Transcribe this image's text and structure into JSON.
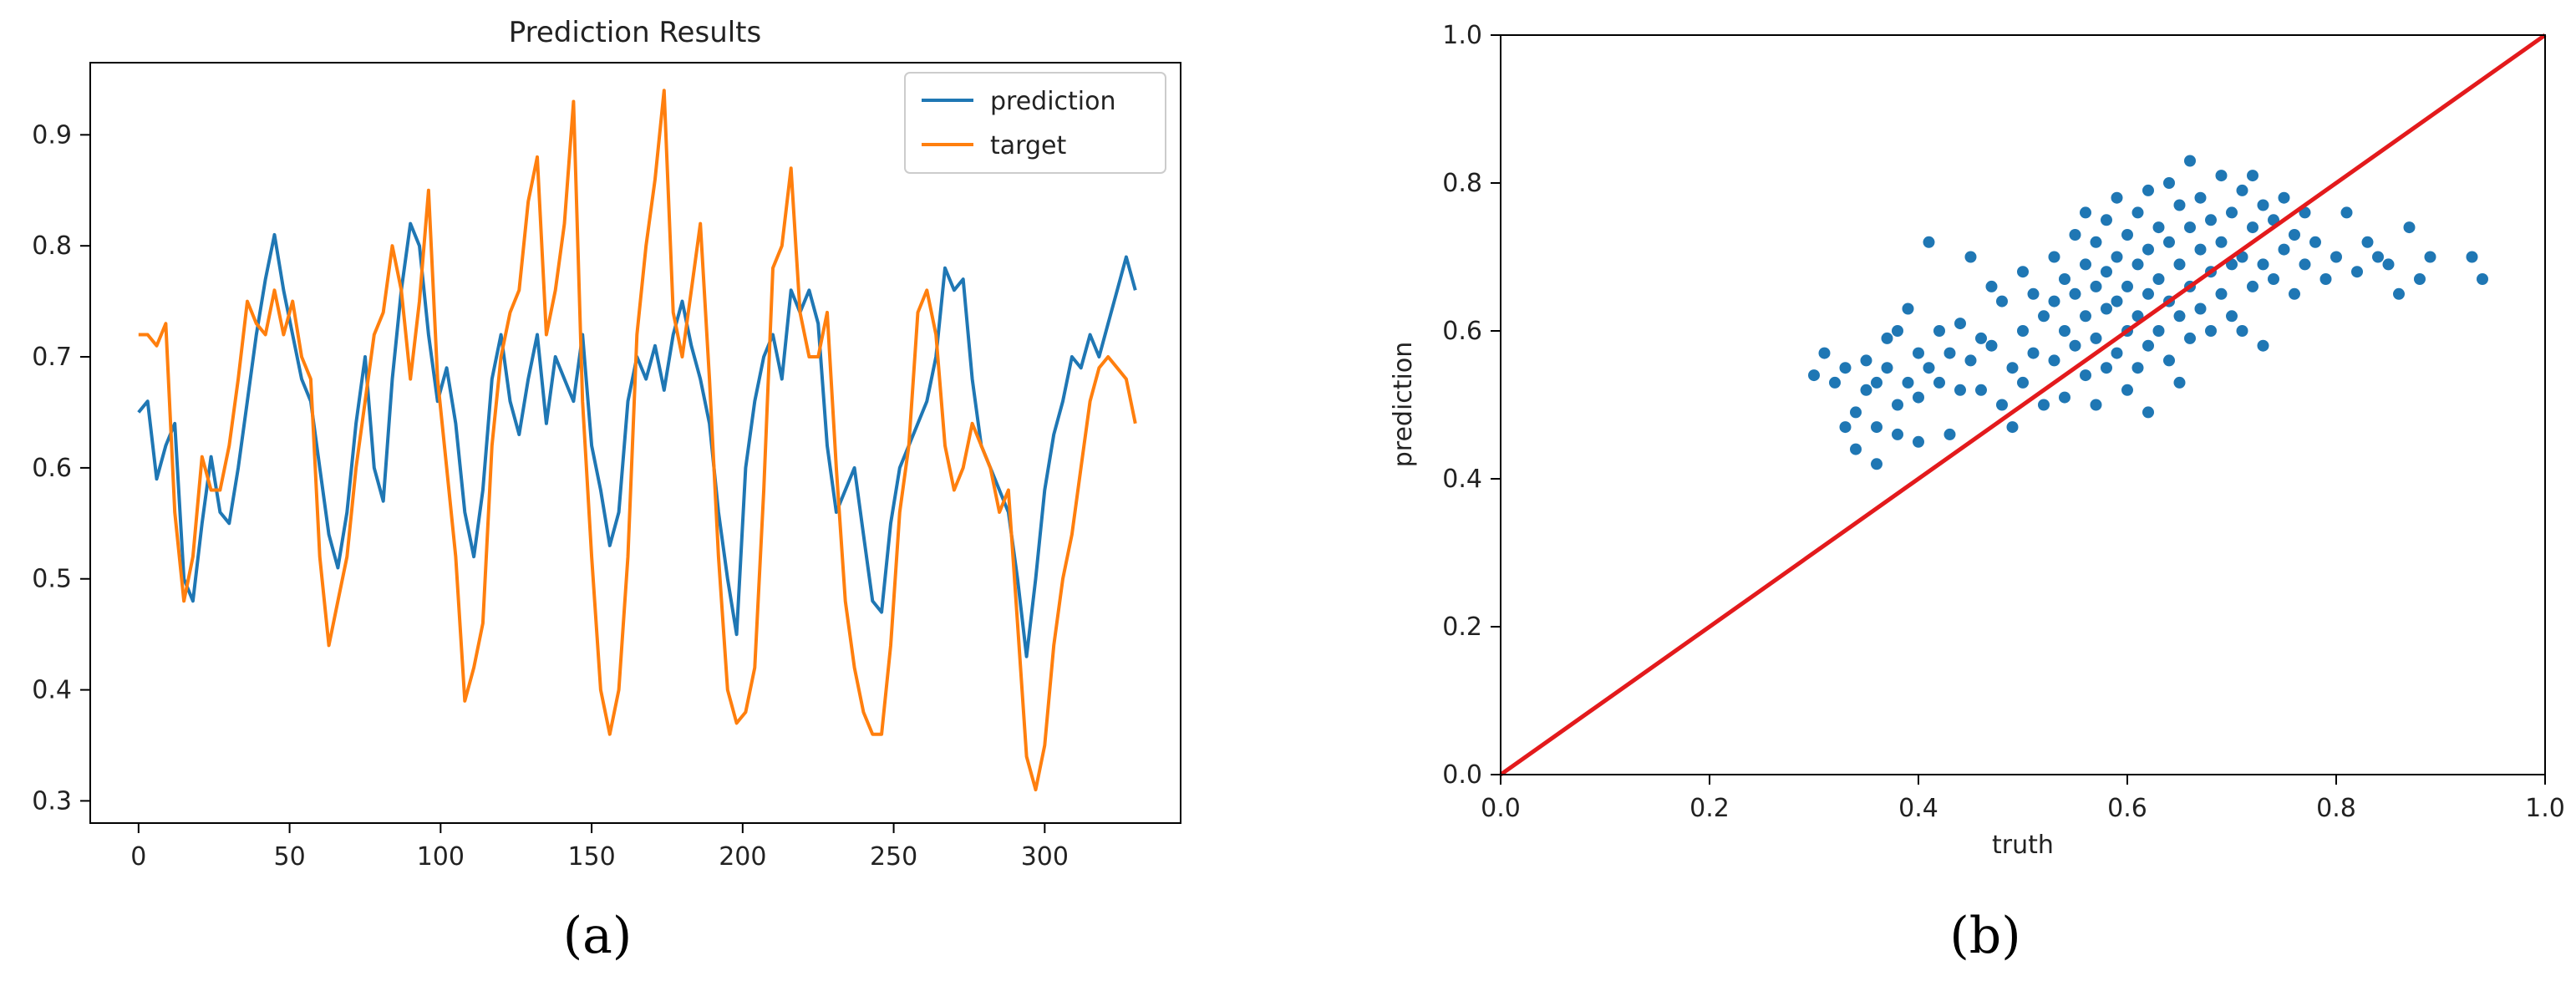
{
  "colors": {
    "prediction": "#1f77b4",
    "target": "#ff7f0e",
    "identity_line": "#e31a1c",
    "axis": "#000000"
  },
  "chart_data": [
    {
      "type": "line",
      "title": "Prediction Results",
      "caption": "(a)",
      "xlabel": "",
      "ylabel": "",
      "xlim": [
        -16,
        345
      ],
      "ylim": [
        0.28,
        0.965
      ],
      "xticks": [
        0,
        50,
        100,
        150,
        200,
        250,
        300
      ],
      "yticks": [
        0.3,
        0.4,
        0.5,
        0.6,
        0.7,
        0.8,
        0.9
      ],
      "legend_position": "top-right",
      "grid": false,
      "series": [
        {
          "name": "prediction",
          "x": [
            0,
            3,
            6,
            9,
            12,
            15,
            18,
            21,
            24,
            27,
            30,
            33,
            36,
            39,
            42,
            45,
            48,
            51,
            54,
            57,
            60,
            63,
            66,
            69,
            72,
            75,
            78,
            81,
            84,
            87,
            90,
            93,
            96,
            99,
            102,
            105,
            108,
            111,
            114,
            117,
            120,
            123,
            126,
            129,
            132,
            135,
            138,
            141,
            144,
            147,
            150,
            153,
            156,
            159,
            162,
            165,
            168,
            171,
            174,
            177,
            180,
            183,
            186,
            189,
            192,
            195,
            198,
            201,
            204,
            207,
            210,
            213,
            216,
            219,
            222,
            225,
            228,
            231,
            234,
            237,
            240,
            243,
            246,
            249,
            252,
            255,
            258,
            261,
            264,
            267,
            270,
            273,
            276,
            279,
            282,
            285,
            288,
            291,
            294,
            297,
            300,
            303,
            306,
            309,
            312,
            315,
            318,
            321,
            324,
            327,
            330
          ],
          "values": [
            0.65,
            0.66,
            0.59,
            0.62,
            0.64,
            0.5,
            0.48,
            0.55,
            0.61,
            0.56,
            0.55,
            0.6,
            0.66,
            0.72,
            0.77,
            0.81,
            0.76,
            0.72,
            0.68,
            0.66,
            0.6,
            0.54,
            0.51,
            0.56,
            0.64,
            0.7,
            0.6,
            0.57,
            0.68,
            0.76,
            0.82,
            0.8,
            0.72,
            0.66,
            0.69,
            0.64,
            0.56,
            0.52,
            0.58,
            0.68,
            0.72,
            0.66,
            0.63,
            0.68,
            0.72,
            0.64,
            0.7,
            0.68,
            0.66,
            0.72,
            0.62,
            0.58,
            0.53,
            0.56,
            0.66,
            0.7,
            0.68,
            0.71,
            0.67,
            0.72,
            0.75,
            0.71,
            0.68,
            0.64,
            0.56,
            0.5,
            0.45,
            0.6,
            0.66,
            0.7,
            0.72,
            0.68,
            0.76,
            0.74,
            0.76,
            0.73,
            0.62,
            0.56,
            0.58,
            0.6,
            0.54,
            0.48,
            0.47,
            0.55,
            0.6,
            0.62,
            0.64,
            0.66,
            0.7,
            0.78,
            0.76,
            0.77,
            0.68,
            0.62,
            0.6,
            0.58,
            0.56,
            0.5,
            0.43,
            0.5,
            0.58,
            0.63,
            0.66,
            0.7,
            0.69,
            0.72,
            0.7,
            0.73,
            0.76,
            0.79,
            0.76
          ]
        },
        {
          "name": "target",
          "x": [
            0,
            3,
            6,
            9,
            12,
            15,
            18,
            21,
            24,
            27,
            30,
            33,
            36,
            39,
            42,
            45,
            48,
            51,
            54,
            57,
            60,
            63,
            66,
            69,
            72,
            75,
            78,
            81,
            84,
            87,
            90,
            93,
            96,
            99,
            102,
            105,
            108,
            111,
            114,
            117,
            120,
            123,
            126,
            129,
            132,
            135,
            138,
            141,
            144,
            147,
            150,
            153,
            156,
            159,
            162,
            165,
            168,
            171,
            174,
            177,
            180,
            183,
            186,
            189,
            192,
            195,
            198,
            201,
            204,
            207,
            210,
            213,
            216,
            219,
            222,
            225,
            228,
            231,
            234,
            237,
            240,
            243,
            246,
            249,
            252,
            255,
            258,
            261,
            264,
            267,
            270,
            273,
            276,
            279,
            282,
            285,
            288,
            291,
            294,
            297,
            300,
            303,
            306,
            309,
            312,
            315,
            318,
            321,
            324,
            327,
            330
          ],
          "values": [
            0.72,
            0.72,
            0.71,
            0.73,
            0.56,
            0.48,
            0.52,
            0.61,
            0.58,
            0.58,
            0.62,
            0.68,
            0.75,
            0.73,
            0.72,
            0.76,
            0.72,
            0.75,
            0.7,
            0.68,
            0.52,
            0.44,
            0.48,
            0.52,
            0.6,
            0.66,
            0.72,
            0.74,
            0.8,
            0.76,
            0.68,
            0.75,
            0.85,
            0.68,
            0.6,
            0.52,
            0.39,
            0.42,
            0.46,
            0.62,
            0.7,
            0.74,
            0.76,
            0.84,
            0.88,
            0.72,
            0.76,
            0.82,
            0.93,
            0.66,
            0.52,
            0.4,
            0.36,
            0.4,
            0.52,
            0.72,
            0.8,
            0.86,
            0.94,
            0.74,
            0.7,
            0.76,
            0.82,
            0.68,
            0.52,
            0.4,
            0.37,
            0.38,
            0.42,
            0.58,
            0.78,
            0.8,
            0.87,
            0.74,
            0.7,
            0.7,
            0.74,
            0.6,
            0.48,
            0.42,
            0.38,
            0.36,
            0.36,
            0.44,
            0.56,
            0.62,
            0.74,
            0.76,
            0.72,
            0.62,
            0.58,
            0.6,
            0.64,
            0.62,
            0.6,
            0.56,
            0.58,
            0.46,
            0.34,
            0.31,
            0.35,
            0.44,
            0.5,
            0.54,
            0.6,
            0.66,
            0.69,
            0.7,
            0.69,
            0.68,
            0.64
          ]
        }
      ]
    },
    {
      "type": "scatter",
      "caption": "(b)",
      "xlabel": "truth",
      "ylabel": "prediction",
      "xlim": [
        0.0,
        1.0
      ],
      "ylim": [
        0.0,
        1.0
      ],
      "xticks": [
        0.0,
        0.2,
        0.4,
        0.6,
        0.8,
        1.0
      ],
      "yticks": [
        0.0,
        0.2,
        0.4,
        0.6,
        0.8,
        1.0
      ],
      "grid": false,
      "reference_line": {
        "from": [
          0.0,
          0.0
        ],
        "to": [
          1.0,
          1.0
        ]
      },
      "points": [
        [
          0.3,
          0.54
        ],
        [
          0.31,
          0.57
        ],
        [
          0.32,
          0.53
        ],
        [
          0.33,
          0.55
        ],
        [
          0.33,
          0.47
        ],
        [
          0.34,
          0.44
        ],
        [
          0.34,
          0.49
        ],
        [
          0.35,
          0.52
        ],
        [
          0.35,
          0.56
        ],
        [
          0.36,
          0.53
        ],
        [
          0.36,
          0.42
        ],
        [
          0.36,
          0.47
        ],
        [
          0.37,
          0.59
        ],
        [
          0.37,
          0.55
        ],
        [
          0.38,
          0.5
        ],
        [
          0.38,
          0.46
        ],
        [
          0.38,
          0.6
        ],
        [
          0.39,
          0.53
        ],
        [
          0.39,
          0.63
        ],
        [
          0.4,
          0.57
        ],
        [
          0.4,
          0.51
        ],
        [
          0.4,
          0.45
        ],
        [
          0.41,
          0.72
        ],
        [
          0.41,
          0.55
        ],
        [
          0.42,
          0.6
        ],
        [
          0.42,
          0.53
        ],
        [
          0.43,
          0.57
        ],
        [
          0.43,
          0.46
        ],
        [
          0.44,
          0.61
        ],
        [
          0.44,
          0.52
        ],
        [
          0.45,
          0.7
        ],
        [
          0.45,
          0.56
        ],
        [
          0.46,
          0.59
        ],
        [
          0.46,
          0.52
        ],
        [
          0.47,
          0.66
        ],
        [
          0.47,
          0.58
        ],
        [
          0.48,
          0.64
        ],
        [
          0.48,
          0.5
        ],
        [
          0.49,
          0.55
        ],
        [
          0.49,
          0.47
        ],
        [
          0.5,
          0.68
        ],
        [
          0.5,
          0.6
        ],
        [
          0.5,
          0.53
        ],
        [
          0.51,
          0.65
        ],
        [
          0.51,
          0.57
        ],
        [
          0.52,
          0.62
        ],
        [
          0.52,
          0.5
        ],
        [
          0.53,
          0.7
        ],
        [
          0.53,
          0.64
        ],
        [
          0.53,
          0.56
        ],
        [
          0.54,
          0.67
        ],
        [
          0.54,
          0.6
        ],
        [
          0.54,
          0.51
        ],
        [
          0.55,
          0.73
        ],
        [
          0.55,
          0.65
        ],
        [
          0.55,
          0.58
        ],
        [
          0.56,
          0.76
        ],
        [
          0.56,
          0.69
        ],
        [
          0.56,
          0.62
        ],
        [
          0.56,
          0.54
        ],
        [
          0.57,
          0.72
        ],
        [
          0.57,
          0.66
        ],
        [
          0.57,
          0.59
        ],
        [
          0.57,
          0.5
        ],
        [
          0.58,
          0.75
        ],
        [
          0.58,
          0.68
        ],
        [
          0.58,
          0.63
        ],
        [
          0.58,
          0.55
        ],
        [
          0.59,
          0.78
        ],
        [
          0.59,
          0.7
        ],
        [
          0.59,
          0.64
        ],
        [
          0.59,
          0.57
        ],
        [
          0.6,
          0.73
        ],
        [
          0.6,
          0.66
        ],
        [
          0.6,
          0.6
        ],
        [
          0.6,
          0.52
        ],
        [
          0.61,
          0.76
        ],
        [
          0.61,
          0.69
        ],
        [
          0.61,
          0.62
        ],
        [
          0.61,
          0.55
        ],
        [
          0.62,
          0.79
        ],
        [
          0.62,
          0.71
        ],
        [
          0.62,
          0.65
        ],
        [
          0.62,
          0.58
        ],
        [
          0.62,
          0.49
        ],
        [
          0.63,
          0.74
        ],
        [
          0.63,
          0.67
        ],
        [
          0.63,
          0.6
        ],
        [
          0.64,
          0.8
        ],
        [
          0.64,
          0.72
        ],
        [
          0.64,
          0.64
        ],
        [
          0.64,
          0.56
        ],
        [
          0.65,
          0.77
        ],
        [
          0.65,
          0.69
        ],
        [
          0.65,
          0.62
        ],
        [
          0.65,
          0.53
        ],
        [
          0.66,
          0.83
        ],
        [
          0.66,
          0.74
        ],
        [
          0.66,
          0.66
        ],
        [
          0.66,
          0.59
        ],
        [
          0.67,
          0.78
        ],
        [
          0.67,
          0.71
        ],
        [
          0.67,
          0.63
        ],
        [
          0.68,
          0.75
        ],
        [
          0.68,
          0.68
        ],
        [
          0.68,
          0.6
        ],
        [
          0.69,
          0.81
        ],
        [
          0.69,
          0.72
        ],
        [
          0.69,
          0.65
        ],
        [
          0.7,
          0.76
        ],
        [
          0.7,
          0.69
        ],
        [
          0.7,
          0.62
        ],
        [
          0.71,
          0.79
        ],
        [
          0.71,
          0.7
        ],
        [
          0.71,
          0.6
        ],
        [
          0.72,
          0.81
        ],
        [
          0.72,
          0.74
        ],
        [
          0.72,
          0.66
        ],
        [
          0.73,
          0.77
        ],
        [
          0.73,
          0.69
        ],
        [
          0.73,
          0.58
        ],
        [
          0.74,
          0.75
        ],
        [
          0.74,
          0.67
        ],
        [
          0.75,
          0.78
        ],
        [
          0.75,
          0.71
        ],
        [
          0.76,
          0.73
        ],
        [
          0.76,
          0.65
        ],
        [
          0.77,
          0.76
        ],
        [
          0.77,
          0.69
        ],
        [
          0.78,
          0.72
        ],
        [
          0.79,
          0.67
        ],
        [
          0.8,
          0.7
        ],
        [
          0.81,
          0.76
        ],
        [
          0.82,
          0.68
        ],
        [
          0.83,
          0.72
        ],
        [
          0.84,
          0.7
        ],
        [
          0.85,
          0.69
        ],
        [
          0.86,
          0.65
        ],
        [
          0.87,
          0.74
        ],
        [
          0.88,
          0.67
        ],
        [
          0.89,
          0.7
        ],
        [
          0.93,
          0.7
        ],
        [
          0.94,
          0.67
        ]
      ]
    }
  ]
}
